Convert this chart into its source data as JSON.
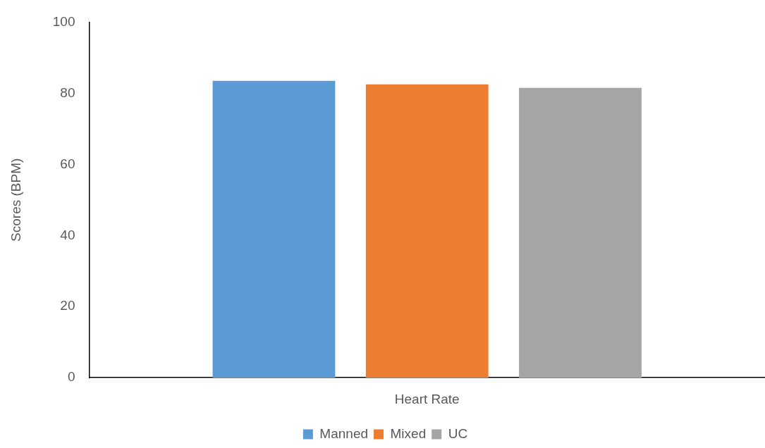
{
  "chart_data": {
    "type": "bar",
    "ylabel": "Scores (BPM)",
    "categories": [
      "Heart Rate"
    ],
    "series": [
      {
        "name": "Manned",
        "color": "#5b9bd5",
        "values": [
          83.5
        ]
      },
      {
        "name": "Mixed",
        "color": "#ed7d31",
        "values": [
          82.5
        ]
      },
      {
        "name": "UC",
        "color": "#a5a5a5",
        "values": [
          81.5
        ]
      }
    ],
    "ylim": [
      0,
      100
    ],
    "yticks": [
      0,
      20,
      40,
      60,
      80,
      100
    ],
    "grid": false,
    "legend": "bottom"
  }
}
